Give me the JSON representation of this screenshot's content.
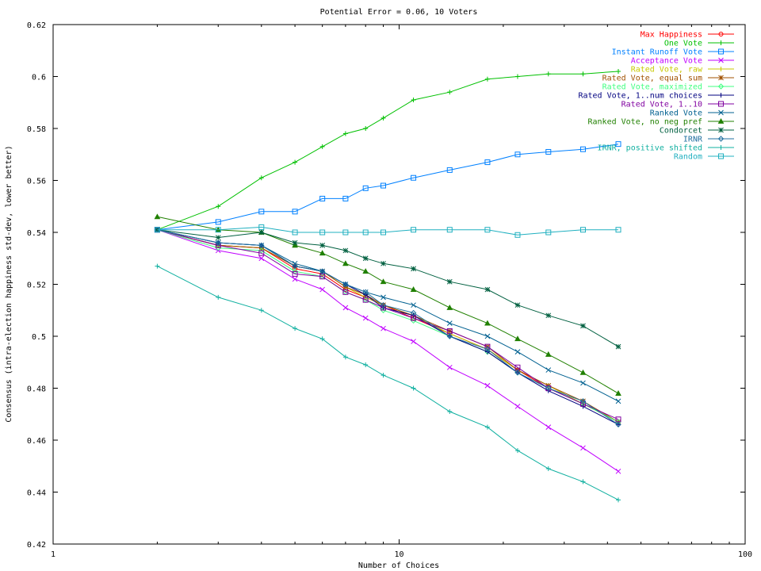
{
  "chart_data": {
    "type": "line",
    "title": "Potential Error = 0.06, 10 Voters",
    "xlabel": "Number of Choices",
    "ylabel": "Consensus (intra-election happiness std-dev, lower better)",
    "xscale": "log",
    "xlim": [
      1,
      100
    ],
    "ylim": [
      0.42,
      0.62
    ],
    "xticks": [
      1,
      10,
      100
    ],
    "xtick_labels": [
      "1",
      "10",
      "100"
    ],
    "yticks": [
      0.42,
      0.44,
      0.46,
      0.48,
      0.5,
      0.52,
      0.54,
      0.56,
      0.58,
      0.6,
      0.62
    ],
    "ytick_labels": [
      "0.42",
      "0.44",
      "0.46",
      "0.48",
      "0.5",
      "0.52",
      "0.54",
      "0.56",
      "0.58",
      "0.6",
      "0.62"
    ],
    "grid": false,
    "legend_position": "top-right",
    "x": [
      2,
      3,
      4,
      5,
      6,
      7,
      8,
      9,
      11,
      14,
      18,
      22,
      27,
      34,
      43
    ],
    "series": [
      {
        "name": "Max Happiness",
        "color": "#ff0000",
        "marker": "circle",
        "values": [
          0.541,
          0.535,
          0.534,
          0.526,
          0.524,
          0.518,
          0.515,
          0.512,
          0.507,
          0.501,
          0.495,
          0.487,
          0.48,
          0.474,
          0.467
        ]
      },
      {
        "name": "One Vote",
        "color": "#00c000",
        "marker": "plus",
        "values": [
          0.541,
          0.55,
          0.561,
          0.567,
          0.573,
          0.578,
          0.58,
          0.584,
          0.591,
          0.594,
          0.599,
          0.6,
          0.601,
          0.601,
          0.602
        ]
      },
      {
        "name": "Instant Runoff Vote",
        "color": "#0080ff",
        "marker": "square",
        "values": [
          0.541,
          0.544,
          0.548,
          0.548,
          0.553,
          0.553,
          0.557,
          0.558,
          0.561,
          0.564,
          0.567,
          0.57,
          0.571,
          0.572,
          0.574
        ]
      },
      {
        "name": "Acceptance Vote",
        "color": "#c000ff",
        "marker": "x",
        "values": [
          0.541,
          0.533,
          0.53,
          0.522,
          0.518,
          0.511,
          0.507,
          0.503,
          0.498,
          0.488,
          0.481,
          0.473,
          0.465,
          0.457,
          0.448
        ]
      },
      {
        "name": "Rated Vote, raw",
        "color": "#c8c800",
        "marker": "plus",
        "values": [
          0.541,
          0.535,
          0.534,
          0.527,
          0.525,
          0.519,
          0.515,
          0.512,
          0.508,
          0.501,
          0.495,
          0.487,
          0.481,
          0.474,
          0.467
        ]
      },
      {
        "name": "Rated Vote, equal sum",
        "color": "#a05000",
        "marker": "star",
        "values": [
          0.541,
          0.535,
          0.534,
          0.527,
          0.525,
          0.519,
          0.516,
          0.512,
          0.508,
          0.502,
          0.496,
          0.487,
          0.481,
          0.475,
          0.467
        ]
      },
      {
        "name": "Rated Vote, maximized",
        "color": "#40ff80",
        "marker": "diamond",
        "values": [
          0.541,
          0.534,
          0.533,
          0.525,
          0.523,
          0.517,
          0.514,
          0.51,
          0.506,
          0.5,
          0.494,
          0.486,
          0.48,
          0.474,
          0.467
        ]
      },
      {
        "name": "Rated Vote, 1..num choices",
        "color": "#000080",
        "marker": "plus",
        "values": [
          0.541,
          0.536,
          0.535,
          0.527,
          0.525,
          0.52,
          0.516,
          0.511,
          0.508,
          0.5,
          0.494,
          0.486,
          0.479,
          0.473,
          0.466
        ]
      },
      {
        "name": "Rated Vote, 1..10",
        "color": "#8000a0",
        "marker": "square",
        "values": [
          0.541,
          0.535,
          0.532,
          0.524,
          0.523,
          0.517,
          0.514,
          0.511,
          0.507,
          0.502,
          0.496,
          0.488,
          0.48,
          0.474,
          0.468
        ]
      },
      {
        "name": "Ranked Vote",
        "color": "#006090",
        "marker": "x",
        "values": [
          0.541,
          0.536,
          0.535,
          0.528,
          0.525,
          0.52,
          0.517,
          0.515,
          0.512,
          0.505,
          0.5,
          0.494,
          0.487,
          0.482,
          0.475
        ]
      },
      {
        "name": "Ranked Vote, no neg pref",
        "color": "#208000",
        "marker": "triangle",
        "values": [
          0.546,
          0.541,
          0.54,
          0.535,
          0.532,
          0.528,
          0.525,
          0.521,
          0.518,
          0.511,
          0.505,
          0.499,
          0.493,
          0.486,
          0.478
        ]
      },
      {
        "name": "Condorcet",
        "color": "#006040",
        "marker": "star",
        "values": [
          0.541,
          0.538,
          0.54,
          0.536,
          0.535,
          0.533,
          0.53,
          0.528,
          0.526,
          0.521,
          0.518,
          0.512,
          0.508,
          0.504,
          0.496
        ]
      },
      {
        "name": "IRNR",
        "color": "#2070a0",
        "marker": "diamond",
        "values": [
          0.541,
          0.536,
          0.535,
          0.527,
          0.525,
          0.52,
          0.517,
          0.512,
          0.509,
          0.5,
          0.495,
          0.486,
          0.48,
          0.475,
          0.466
        ]
      },
      {
        "name": "IRNR, positive shifted",
        "color": "#10b0a0",
        "marker": "plus",
        "values": [
          0.527,
          0.515,
          0.51,
          0.503,
          0.499,
          0.492,
          0.489,
          0.485,
          0.48,
          0.471,
          0.465,
          0.456,
          0.449,
          0.444,
          0.437
        ]
      },
      {
        "name": "Random",
        "color": "#20b0c0",
        "marker": "square",
        "values": [
          0.541,
          0.541,
          0.542,
          0.54,
          0.54,
          0.54,
          0.54,
          0.54,
          0.541,
          0.541,
          0.541,
          0.539,
          0.54,
          0.541,
          0.541
        ]
      }
    ]
  }
}
